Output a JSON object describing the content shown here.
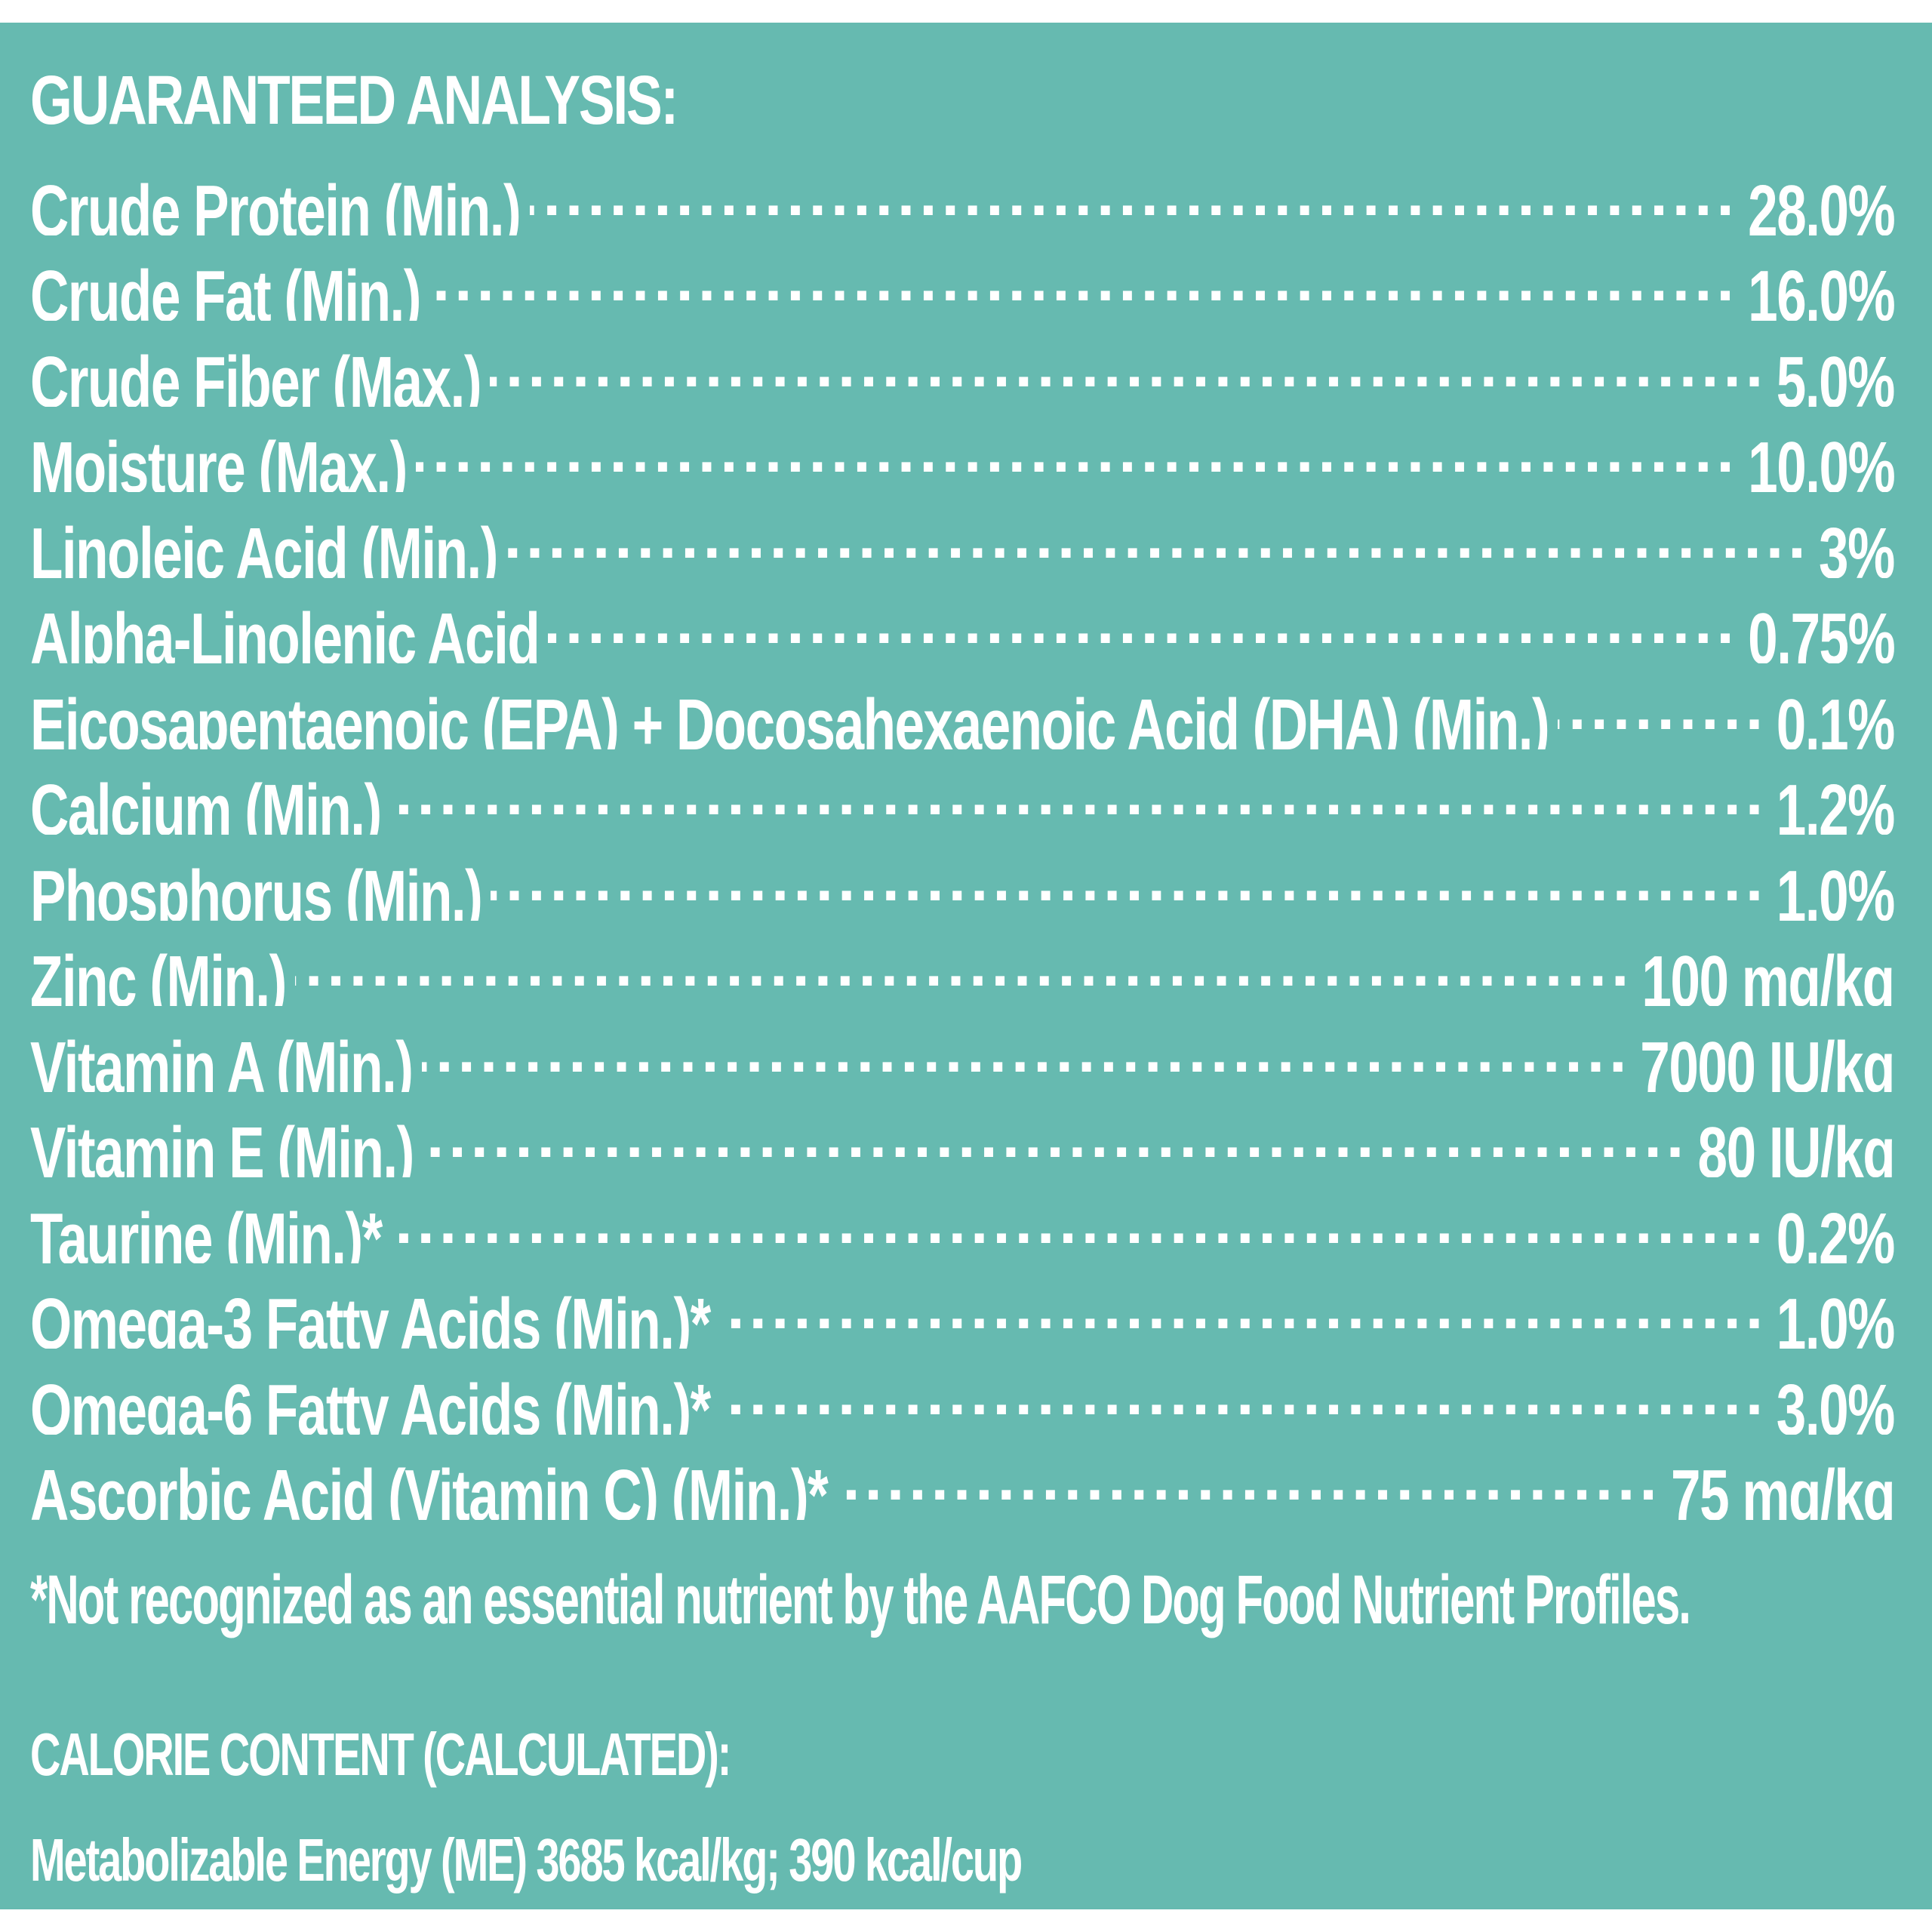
{
  "colors": {
    "panel_background": "#66bab0",
    "text": "#ffffff",
    "page_background": "#ffffff"
  },
  "guaranteed_analysis": {
    "title": "GUARANTEED ANALYSIS:",
    "rows": [
      {
        "label": "Crude Protein (Min.)",
        "value": "28.0%"
      },
      {
        "label": "Crude Fat (Min.)",
        "value": "16.0%"
      },
      {
        "label": "Crude Fiber (Max.)",
        "value": "5.0%"
      },
      {
        "label": "Moisture (Max.)",
        "value": "10.0%"
      },
      {
        "label": "Linoleic Acid (Min.)",
        "value": "3%"
      },
      {
        "label": "Alpha-Linolenic Acid",
        "value": "0.75%"
      },
      {
        "label": "Eicosapentaenoic (EPA) + Docosahexaenoic Acid (DHA) (Min.)",
        "value": "0.1%"
      },
      {
        "label": "Calcium (Min.)",
        "value": "1.2%"
      },
      {
        "label": "Phosphorus (Min.)",
        "value": "1.0%"
      },
      {
        "label": "Zinc (Min.)",
        "value": "100 mg/kg"
      },
      {
        "label": "Vitamin A (Min.)",
        "value": "7000 IU/kg"
      },
      {
        "label": "Vitamin E (Min.)",
        "value": "80 IU/kg"
      },
      {
        "label": "Taurine (Min.)*",
        "value": "0.2%"
      },
      {
        "label": "Omega-3 Fatty Acids (Min.)*",
        "value": "1.0%"
      },
      {
        "label": "Omega-6 Fatty Acids (Min.)*",
        "value": "3.0%"
      },
      {
        "label": "Ascorbic Acid (Vitamin C) (Min.)*",
        "value": "75 mg/kg"
      }
    ],
    "footnote": "*Not recognized as an essential nutrient by the AAFCO Dog Food Nutrient Profiles."
  },
  "calorie_content": {
    "heading": "CALORIE CONTENT (CALCULATED):",
    "text": "Metabolizable Energy (ME) 3685 kcal/kg;  390 kcal/cup"
  }
}
